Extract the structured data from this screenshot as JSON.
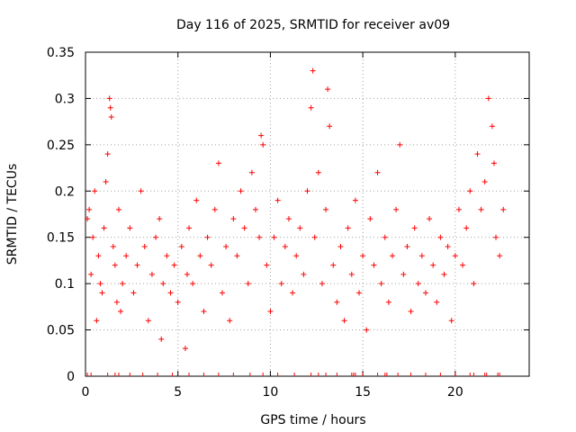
{
  "chart_data": {
    "type": "scatter",
    "title": "Day 116 of 2025, SRMTID for receiver av09",
    "xlabel": "GPS time / hours",
    "ylabel": "SRMTID / TECUs",
    "xlim": [
      0,
      24
    ],
    "ylim": [
      0,
      0.35
    ],
    "x_ticks": [
      0,
      5,
      10,
      15,
      20
    ],
    "x_tick_labels": [
      "0",
      "5",
      "10",
      "15",
      "20"
    ],
    "y_ticks": [
      0,
      0.05,
      0.1,
      0.15,
      0.2,
      0.25,
      0.3,
      0.35
    ],
    "y_tick_labels": [
      "0",
      "0.05",
      "0.1",
      "0.15",
      "0.2",
      "0.25",
      "0.3",
      "0.35"
    ],
    "grid": true,
    "marker": "plus",
    "color": "#ff0000",
    "series": [
      {
        "name": "SRMTID",
        "points": [
          [
            0.1,
            0.17
          ],
          [
            0.2,
            0.18
          ],
          [
            0.3,
            0.11
          ],
          [
            0.4,
            0.15
          ],
          [
            0.5,
            0.2
          ],
          [
            0.6,
            0.06
          ],
          [
            0.7,
            0.13
          ],
          [
            0.8,
            0.1
          ],
          [
            0.9,
            0.09
          ],
          [
            1.0,
            0.16
          ],
          [
            1.1,
            0.21
          ],
          [
            1.2,
            0.24
          ],
          [
            1.3,
            0.3
          ],
          [
            1.35,
            0.29
          ],
          [
            1.4,
            0.28
          ],
          [
            1.5,
            0.14
          ],
          [
            1.6,
            0.12
          ],
          [
            1.7,
            0.08
          ],
          [
            1.8,
            0.18
          ],
          [
            1.9,
            0.07
          ],
          [
            2.0,
            0.1
          ],
          [
            2.2,
            0.13
          ],
          [
            2.4,
            0.16
          ],
          [
            2.6,
            0.09
          ],
          [
            2.8,
            0.12
          ],
          [
            3.0,
            0.2
          ],
          [
            3.2,
            0.14
          ],
          [
            3.4,
            0.06
          ],
          [
            3.6,
            0.11
          ],
          [
            3.8,
            0.15
          ],
          [
            4.0,
            0.17
          ],
          [
            4.1,
            0.04
          ],
          [
            4.2,
            0.1
          ],
          [
            4.4,
            0.13
          ],
          [
            4.6,
            0.09
          ],
          [
            4.8,
            0.12
          ],
          [
            5.0,
            0.08
          ],
          [
            5.2,
            0.14
          ],
          [
            5.4,
            0.03
          ],
          [
            5.5,
            0.11
          ],
          [
            5.6,
            0.16
          ],
          [
            5.8,
            0.1
          ],
          [
            6.0,
            0.19
          ],
          [
            6.2,
            0.13
          ],
          [
            6.4,
            0.07
          ],
          [
            6.6,
            0.15
          ],
          [
            6.8,
            0.12
          ],
          [
            7.0,
            0.18
          ],
          [
            7.2,
            0.23
          ],
          [
            7.4,
            0.09
          ],
          [
            7.6,
            0.14
          ],
          [
            7.8,
            0.06
          ],
          [
            8.0,
            0.17
          ],
          [
            8.2,
            0.13
          ],
          [
            8.4,
            0.2
          ],
          [
            8.6,
            0.16
          ],
          [
            8.8,
            0.1
          ],
          [
            9.0,
            0.22
          ],
          [
            9.2,
            0.18
          ],
          [
            9.4,
            0.15
          ],
          [
            9.5,
            0.26
          ],
          [
            9.6,
            0.25
          ],
          [
            9.8,
            0.12
          ],
          [
            10.0,
            0.07
          ],
          [
            10.2,
            0.15
          ],
          [
            10.4,
            0.19
          ],
          [
            10.6,
            0.1
          ],
          [
            10.8,
            0.14
          ],
          [
            11.0,
            0.17
          ],
          [
            11.2,
            0.09
          ],
          [
            11.4,
            0.13
          ],
          [
            11.6,
            0.16
          ],
          [
            11.8,
            0.11
          ],
          [
            12.0,
            0.2
          ],
          [
            12.2,
            0.29
          ],
          [
            12.3,
            0.33
          ],
          [
            12.4,
            0.15
          ],
          [
            12.6,
            0.22
          ],
          [
            12.8,
            0.1
          ],
          [
            13.0,
            0.18
          ],
          [
            13.1,
            0.31
          ],
          [
            13.2,
            0.27
          ],
          [
            13.4,
            0.12
          ],
          [
            13.6,
            0.08
          ],
          [
            13.8,
            0.14
          ],
          [
            14.0,
            0.06
          ],
          [
            14.2,
            0.16
          ],
          [
            14.4,
            0.11
          ],
          [
            14.6,
            0.19
          ],
          [
            14.8,
            0.09
          ],
          [
            15.0,
            0.13
          ],
          [
            15.2,
            0.05
          ],
          [
            15.4,
            0.17
          ],
          [
            15.6,
            0.12
          ],
          [
            15.8,
            0.22
          ],
          [
            16.0,
            0.1
          ],
          [
            16.2,
            0.15
          ],
          [
            16.4,
            0.08
          ],
          [
            16.6,
            0.13
          ],
          [
            16.8,
            0.18
          ],
          [
            17.0,
            0.25
          ],
          [
            17.2,
            0.11
          ],
          [
            17.4,
            0.14
          ],
          [
            17.6,
            0.07
          ],
          [
            17.8,
            0.16
          ],
          [
            18.0,
            0.1
          ],
          [
            18.2,
            0.13
          ],
          [
            18.4,
            0.09
          ],
          [
            18.6,
            0.17
          ],
          [
            18.8,
            0.12
          ],
          [
            19.0,
            0.08
          ],
          [
            19.2,
            0.15
          ],
          [
            19.4,
            0.11
          ],
          [
            19.6,
            0.14
          ],
          [
            19.8,
            0.06
          ],
          [
            20.0,
            0.13
          ],
          [
            20.2,
            0.18
          ],
          [
            20.4,
            0.12
          ],
          [
            20.6,
            0.16
          ],
          [
            20.8,
            0.2
          ],
          [
            21.0,
            0.1
          ],
          [
            21.2,
            0.24
          ],
          [
            21.4,
            0.18
          ],
          [
            21.6,
            0.21
          ],
          [
            21.8,
            0.3
          ],
          [
            22.0,
            0.27
          ],
          [
            22.1,
            0.23
          ],
          [
            22.2,
            0.15
          ],
          [
            22.4,
            0.13
          ],
          [
            22.6,
            0.18
          ]
        ]
      }
    ],
    "rug_marks_x": [
      0.1,
      0.3,
      1.2,
      1.6,
      1.8,
      2.4,
      3.1,
      3.9,
      4.7,
      5.6,
      6.4,
      7.2,
      8.0,
      8.9,
      9.6,
      10.4,
      11.3,
      12.2,
      12.6,
      13.0,
      13.6,
      14.4,
      14.5,
      14.6,
      15.0,
      15.8,
      16.2,
      16.3,
      16.9,
      17.6,
      18.4,
      19.2,
      20.0,
      20.8,
      21.0,
      21.6,
      21.7,
      22.3,
      22.4
    ]
  }
}
